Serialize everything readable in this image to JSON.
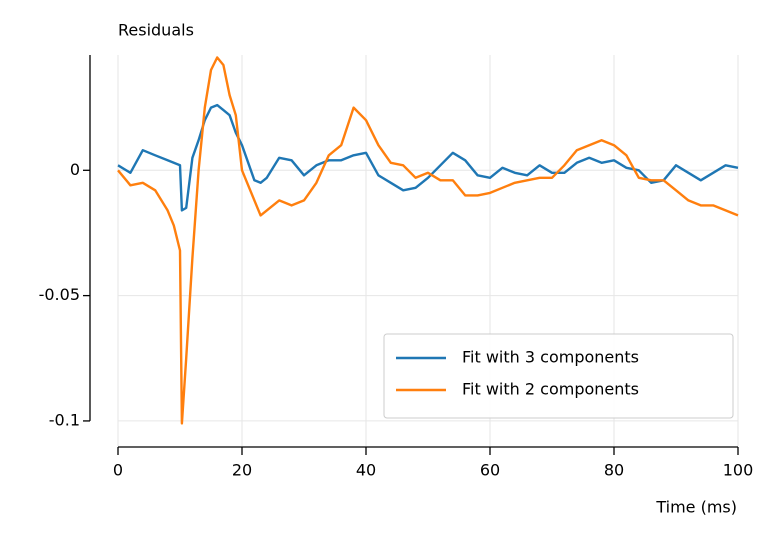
{
  "chart_data": {
    "type": "line",
    "title": "Residuals",
    "xlabel": "Time (ms)",
    "x": [
      0,
      2,
      4,
      6,
      8,
      9,
      10,
      10.3,
      11,
      12,
      13,
      14,
      15,
      16,
      17,
      18,
      19,
      20,
      22,
      23,
      24,
      26,
      28,
      30,
      32,
      34,
      36,
      38,
      40,
      42,
      44,
      46,
      48,
      50,
      52,
      54,
      56,
      58,
      60,
      62,
      64,
      66,
      68,
      70,
      72,
      74,
      76,
      78,
      80,
      82,
      84,
      86,
      88,
      90,
      92,
      94,
      96,
      98,
      100
    ],
    "series": [
      {
        "name": "Fit with 3 components",
        "color": "#1f77b4",
        "values": [
          0.002,
          -0.001,
          0.008,
          0.006,
          0.004,
          0.003,
          0.002,
          -0.016,
          -0.015,
          0.005,
          0.012,
          0.02,
          0.025,
          0.026,
          0.024,
          0.022,
          0.015,
          0.01,
          -0.004,
          -0.005,
          -0.003,
          0.005,
          0.004,
          -0.002,
          0.002,
          0.004,
          0.004,
          0.006,
          0.007,
          -0.002,
          -0.005,
          -0.008,
          -0.007,
          -0.003,
          0.002,
          0.007,
          0.004,
          -0.002,
          -0.003,
          0.001,
          -0.001,
          -0.002,
          0.002,
          -0.001,
          -0.001,
          0.003,
          0.005,
          0.003,
          0.004,
          0.001,
          0,
          -0.005,
          -0.004,
          0.002,
          -0.001,
          -0.004,
          -0.001,
          0.002,
          0.001
        ]
      },
      {
        "name": "Fit with 2 components",
        "color": "#ff7f0e",
        "values": [
          0,
          -0.006,
          -0.005,
          -0.008,
          -0.016,
          -0.022,
          -0.032,
          -0.101,
          -0.075,
          -0.035,
          0,
          0.025,
          0.04,
          0.045,
          0.042,
          0.03,
          0.022,
          0,
          -0.012,
          -0.018,
          -0.016,
          -0.012,
          -0.014,
          -0.012,
          -0.005,
          0.006,
          0.01,
          0.025,
          0.02,
          0.01,
          0.003,
          0.002,
          -0.003,
          -0.001,
          -0.004,
          -0.004,
          -0.01,
          -0.01,
          -0.009,
          -0.007,
          -0.005,
          -0.004,
          -0.003,
          -0.003,
          0.002,
          0.008,
          0.01,
          0.012,
          0.01,
          0.006,
          -0.003,
          -0.004,
          -0.004,
          -0.008,
          -0.012,
          -0.014,
          -0.014,
          -0.016,
          -0.018
        ]
      }
    ],
    "xlim": [
      0,
      100
    ],
    "xticks": [
      0,
      20,
      40,
      60,
      80,
      100
    ],
    "ylim": [
      -0.11,
      0.046
    ],
    "yticks": [
      -0.1,
      -0.05,
      0
    ],
    "grid": true,
    "legend": "lower right"
  }
}
